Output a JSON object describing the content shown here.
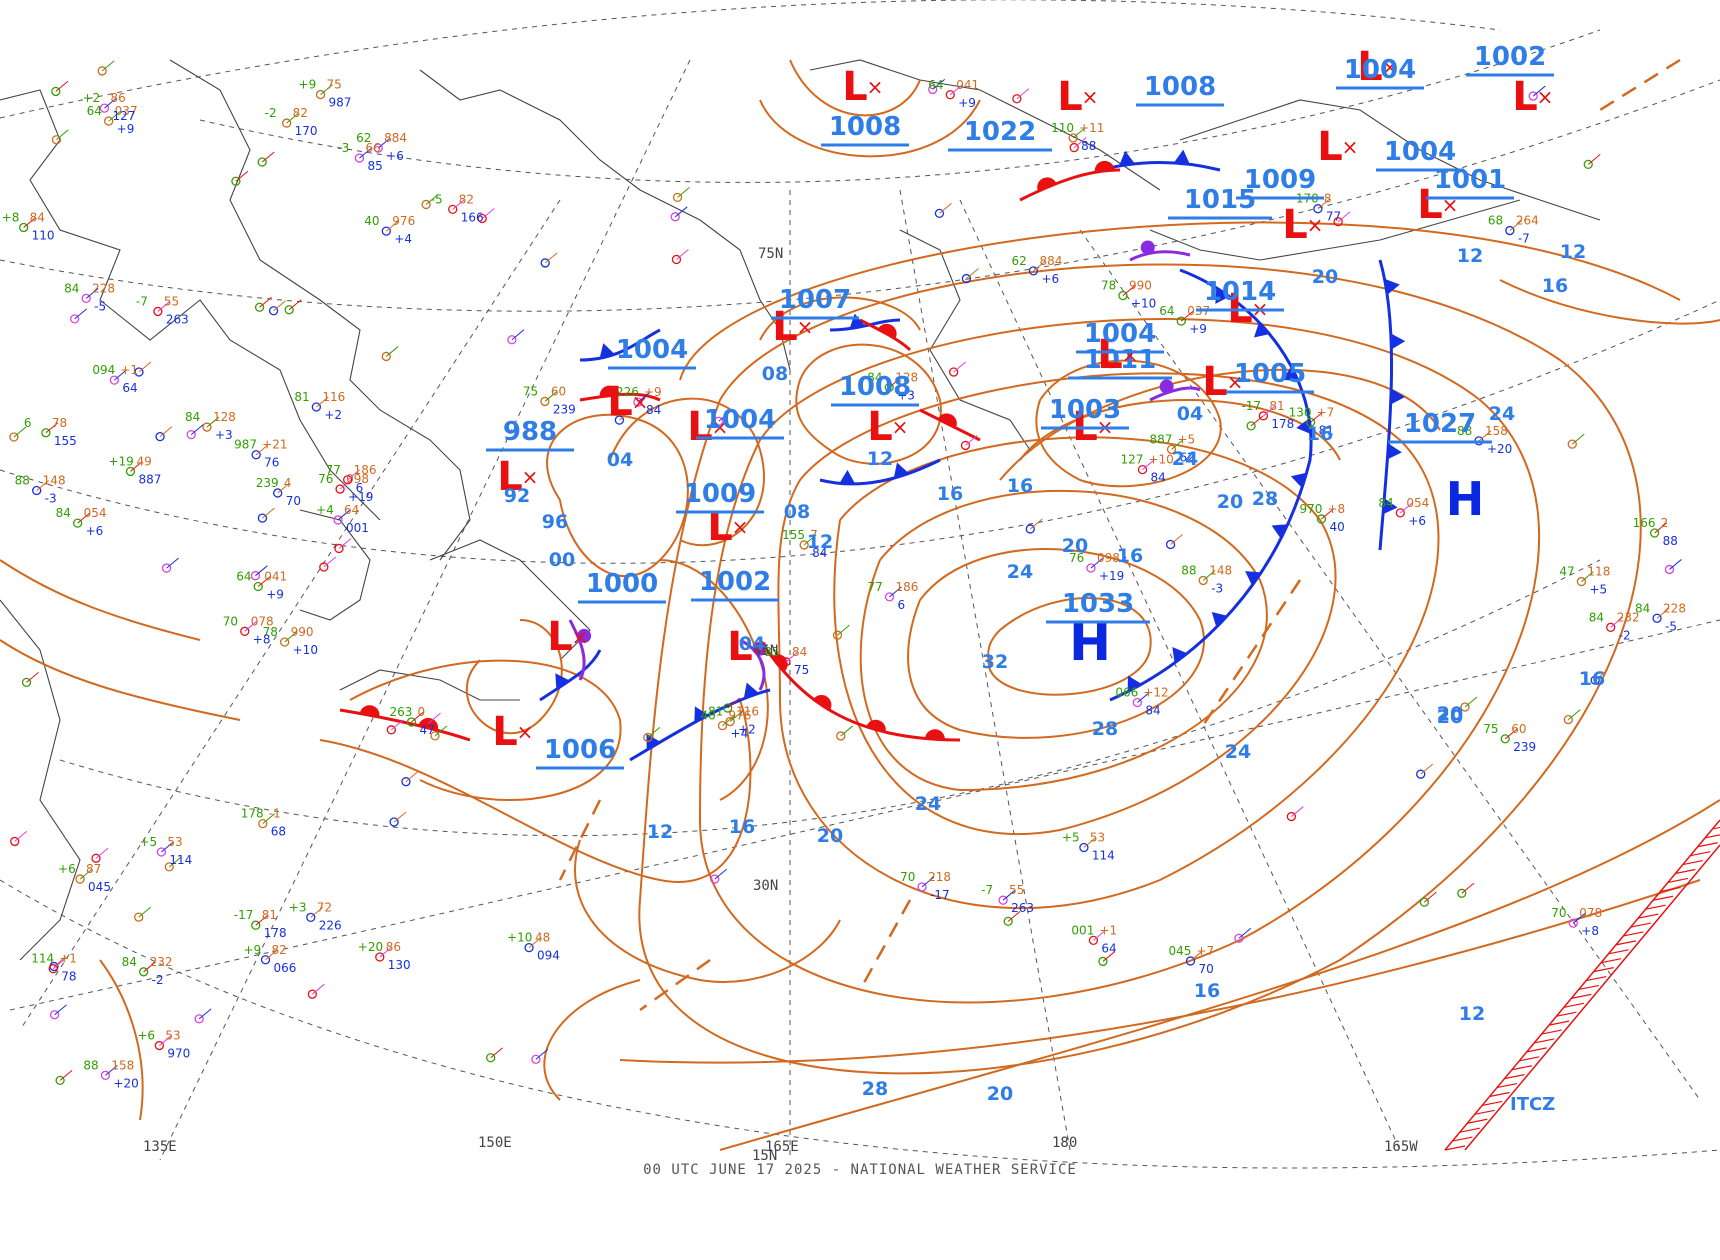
{
  "map": {
    "footer": "00 UTC JUNE 17 2025 - NATIONAL WEATHER SERVICE",
    "colors": {
      "isobar": "#d2691e",
      "label": "#2f7de6",
      "low": "#e81010",
      "high": "#0a28e0",
      "front_cold": "#1530e0",
      "front_warm": "#e81010",
      "occluded": "#8a2be2",
      "itcz": "#e81010",
      "coast": "#444444",
      "grid": "#555555"
    },
    "grid_labels": {
      "lat_30n": "30N",
      "lat_45n": "45N",
      "lat_75n": "75N",
      "lon_150e": "150E",
      "lon_165e": "165E",
      "lon_180": "180",
      "lon_165w": "165W",
      "lon_135e": "135E",
      "lat_15n": "15N"
    },
    "highs": [
      {
        "symbol": "H",
        "pressure": "1033"
      },
      {
        "symbol": "H",
        "pressure": "1027"
      },
      {
        "symbol": "H",
        "pressure": "1022"
      },
      {
        "symbol": "H",
        "pressure": "1015"
      },
      {
        "symbol": "H",
        "pressure": "1011"
      }
    ],
    "lows": [
      {
        "symbol": "L",
        "pressure": "988"
      },
      {
        "symbol": "L",
        "pressure": "1000"
      },
      {
        "symbol": "L",
        "pressure": "1006"
      },
      {
        "symbol": "L",
        "pressure": "1004"
      },
      {
        "symbol": "L",
        "pressure": "1004"
      },
      {
        "symbol": "L",
        "pressure": "1007"
      },
      {
        "symbol": "L",
        "pressure": "1008"
      },
      {
        "symbol": "L",
        "pressure": "1009"
      },
      {
        "symbol": "L",
        "pressure": "1002"
      },
      {
        "symbol": "L",
        "pressure": "1004"
      },
      {
        "symbol": "L",
        "pressure": "1003"
      },
      {
        "symbol": "L",
        "pressure": "1005"
      },
      {
        "symbol": "L",
        "pressure": "1014"
      },
      {
        "symbol": "L",
        "pressure": "1008"
      },
      {
        "symbol": "L",
        "pressure": "1009"
      },
      {
        "symbol": "L",
        "pressure": "1004"
      },
      {
        "symbol": "L",
        "pressure": "1001"
      },
      {
        "symbol": "L",
        "pressure": "1004"
      },
      {
        "symbol": "L",
        "pressure": "1008"
      },
      {
        "symbol": "L",
        "pressure": "1002"
      }
    ],
    "isobar_labels": [
      "12",
      "16",
      "20",
      "24",
      "28",
      "32",
      "16",
      "20",
      "24",
      "28",
      "20",
      "24",
      "16",
      "12",
      "12",
      "16",
      "20",
      "16",
      "12",
      "16",
      "20",
      "24",
      "92",
      "96",
      "00",
      "04",
      "04",
      "08",
      "08",
      "12",
      "16",
      "20",
      "24",
      "28",
      "04",
      "08",
      "12",
      "16",
      "20"
    ],
    "itcz_label": "ITCZ",
    "obs_samples": [
      "78",
      "990",
      "+10",
      "48",
      "094",
      "+1",
      "64",
      "041",
      "+9",
      "75",
      "987",
      "+21",
      "76",
      "098",
      "+19",
      "49",
      "887",
      "+5",
      "62",
      "884",
      "+6",
      "53",
      "970",
      "+8",
      "40",
      "976",
      "+4",
      "64",
      "001",
      "+1",
      "64",
      "037",
      "+9",
      "82",
      "066",
      "+12",
      "84",
      "054",
      "+6",
      "87",
      "045",
      "+7",
      "70",
      "078",
      "+8",
      "84",
      "110",
      "+11",
      "88",
      "158",
      "+20",
      "86",
      "130",
      "+7",
      "81",
      "116",
      "+2",
      "86",
      "127",
      "+10",
      "84",
      "128",
      "+3",
      "72",
      "226",
      "+9",
      "84",
      "232",
      "-2",
      "82",
      "170",
      "8",
      "77",
      "186",
      "6",
      "78",
      "155",
      "7",
      "84",
      "228",
      "-5",
      "82",
      "166",
      "2",
      "88",
      "148",
      "-3",
      "66",
      "85",
      "84",
      "75",
      "60",
      "239",
      "4",
      "70",
      "218",
      "-17",
      "81",
      "178",
      "-1",
      "68",
      "264",
      "-7",
      "55",
      "263",
      "0",
      "47",
      "118",
      "+5",
      "53",
      "114",
      "+1"
    ]
  }
}
